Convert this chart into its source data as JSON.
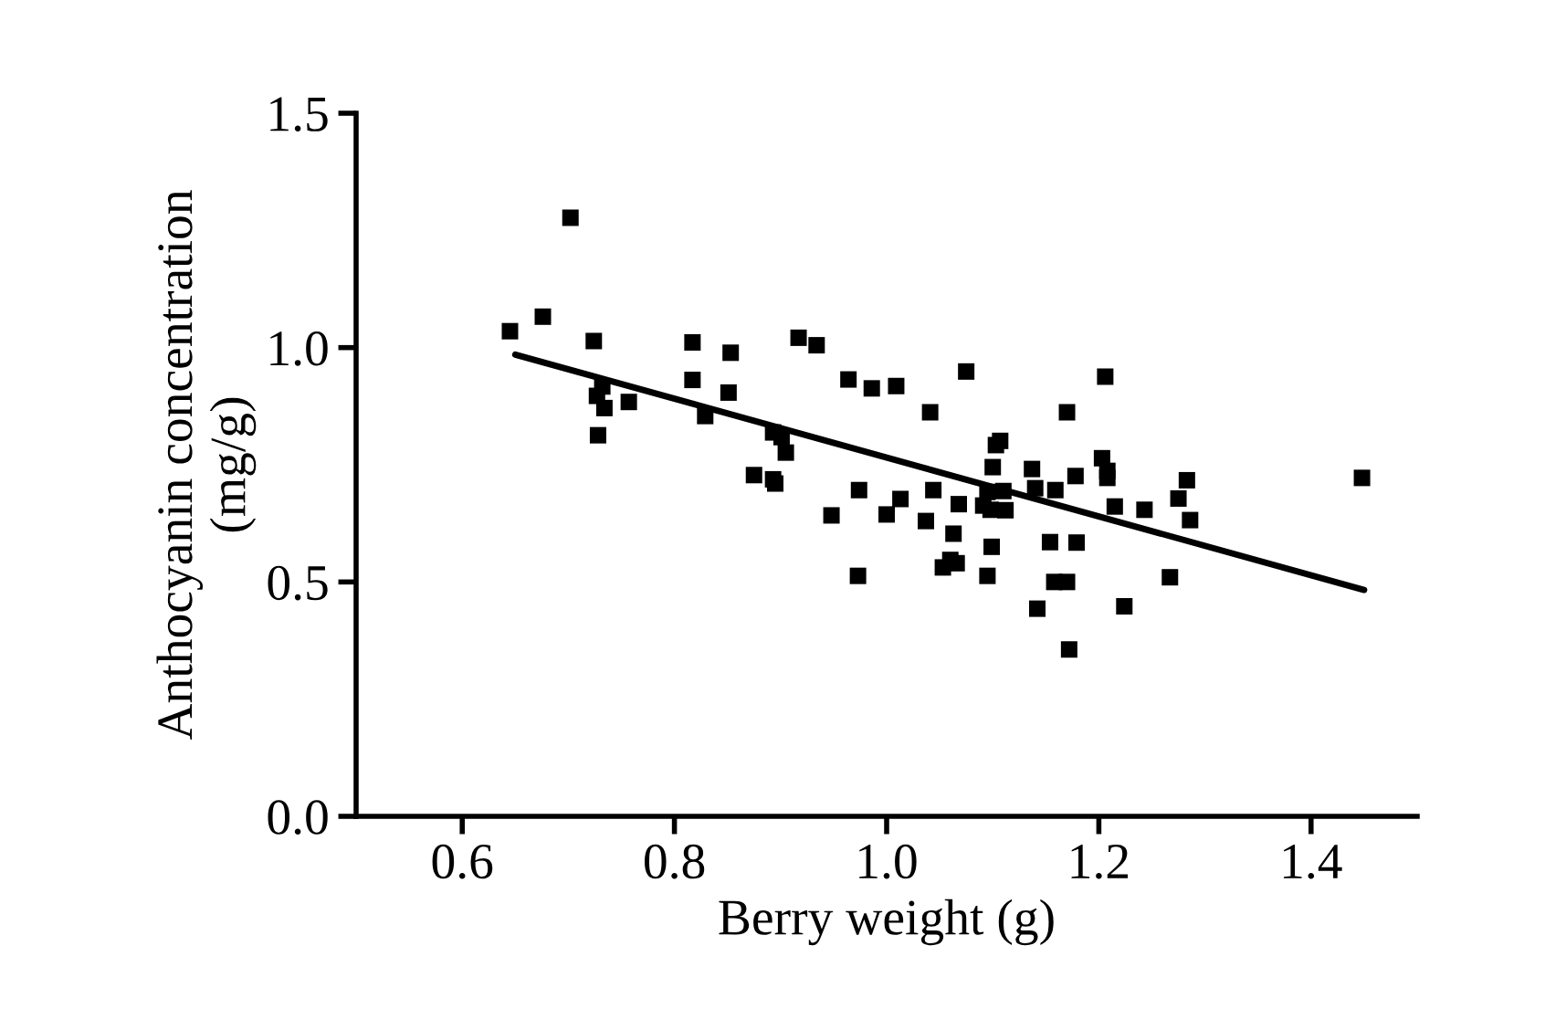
{
  "chart_data": {
    "type": "scatter",
    "xlabel": "Berry weight (g)",
    "ylabel": "Anthocyanin concentration\n(mg/g)",
    "xlim": [
      0.5,
      1.5
    ],
    "xticks": [
      {
        "value": 0.6,
        "label": "0.6"
      },
      {
        "value": 0.8,
        "label": "0.8"
      },
      {
        "value": 1.0,
        "label": "1.0"
      },
      {
        "value": 1.2,
        "label": "1.2"
      },
      {
        "value": 1.4,
        "label": "1.4"
      }
    ],
    "ylim": [
      0,
      1.5
    ],
    "yticks": [
      {
        "value": 0,
        "label": "0.0"
      },
      {
        "value": 0.5,
        "label": "0.5"
      },
      {
        "value": 1.0,
        "label": "1.0"
      },
      {
        "value": 1.5,
        "label": "1.5"
      }
    ],
    "grid": false,
    "legend": false,
    "marker": "square",
    "series": [
      {
        "color": "#000000",
        "x": [
          0.645,
          0.676,
          0.702,
          0.724,
          0.732,
          0.727,
          0.734,
          0.757,
          0.728,
          0.817,
          0.853,
          0.817,
          0.851,
          0.829,
          0.893,
          0.901,
          0.905,
          0.875,
          0.893,
          0.895,
          0.917,
          0.934,
          0.964,
          0.986,
          1.009,
          0.974,
          0.948,
          1.0,
          1.075,
          1.041,
          1.206,
          1.17,
          1.107,
          1.103,
          1.1,
          1.137,
          1.203,
          1.208,
          1.208,
          1.178,
          1.283,
          1.448,
          1.013,
          1.044,
          1.068,
          1.037,
          1.095,
          1.11,
          1.14,
          1.159,
          1.091,
          1.098,
          1.112,
          1.215,
          1.243,
          1.275,
          1.286,
          1.063,
          1.099,
          1.154,
          1.179,
          0.973,
          1.053,
          1.06,
          1.066,
          1.095,
          1.158,
          1.17,
          1.267,
          1.142,
          1.224,
          1.172
        ],
        "values": [
          1.035,
          1.066,
          1.277,
          1.014,
          0.917,
          0.897,
          0.871,
          0.884,
          0.813,
          1.011,
          0.989,
          0.931,
          0.904,
          0.854,
          0.819,
          0.809,
          0.776,
          0.728,
          0.719,
          0.71,
          1.021,
          1.005,
          0.932,
          0.913,
          0.918,
          0.696,
          0.642,
          0.644,
          0.949,
          0.862,
          0.938,
          0.862,
          0.801,
          0.792,
          0.745,
          0.741,
          0.764,
          0.737,
          0.722,
          0.726,
          0.717,
          0.722,
          0.677,
          0.696,
          0.666,
          0.63,
          0.692,
          0.694,
          0.7,
          0.696,
          0.663,
          0.654,
          0.653,
          0.661,
          0.654,
          0.678,
          0.632,
          0.603,
          0.575,
          0.585,
          0.584,
          0.513,
          0.531,
          0.547,
          0.54,
          0.513,
          0.5,
          0.5,
          0.51,
          0.443,
          0.448,
          0.356
        ]
      },
      {
        "type": "line",
        "color": "#000000",
        "marker": "none",
        "line_style": "solid",
        "x": [
          0.65,
          1.45
        ],
        "values": [
          0.985,
          0.483
        ]
      }
    ]
  }
}
